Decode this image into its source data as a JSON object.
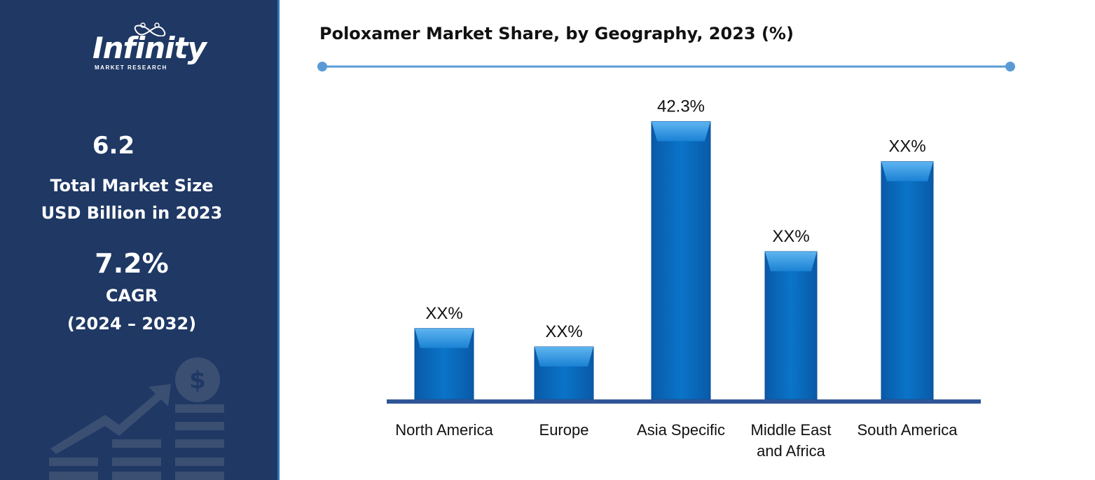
{
  "brand": {
    "name": "Infinity",
    "subtitle": "MARKET RESEARCH"
  },
  "sidebar": {
    "market_size_value": "6.2",
    "market_size_label_line1": "Total Market Size",
    "market_size_label_line2": "USD Billion in 2023",
    "cagr_value": "7.2%",
    "cagr_label": "CAGR",
    "cagr_period": "(2024 – 2032)"
  },
  "colors": {
    "sidebar_bg": "#1f3864",
    "bar_fill": "#0070c0",
    "bar_highlight": "#2e95e6",
    "baseline": "#2f5597",
    "title_rule": "#5b9bd5"
  },
  "chart_data": {
    "type": "bar",
    "title": "Poloxamer Market Share, by Geography, 2023 (%)",
    "categories": [
      [
        "North America"
      ],
      [
        "Europe"
      ],
      [
        "Asia Specific"
      ],
      [
        "Middle East",
        "and Africa"
      ],
      [
        "South America"
      ]
    ],
    "values": [
      10.8,
      8.0,
      42.3,
      22.5,
      36.2
    ],
    "data_labels": [
      "XX%",
      "XX%",
      "42.3%",
      "XX%",
      "XX%"
    ],
    "ylim": [
      0,
      48
    ],
    "grid": false,
    "legend": "none"
  }
}
